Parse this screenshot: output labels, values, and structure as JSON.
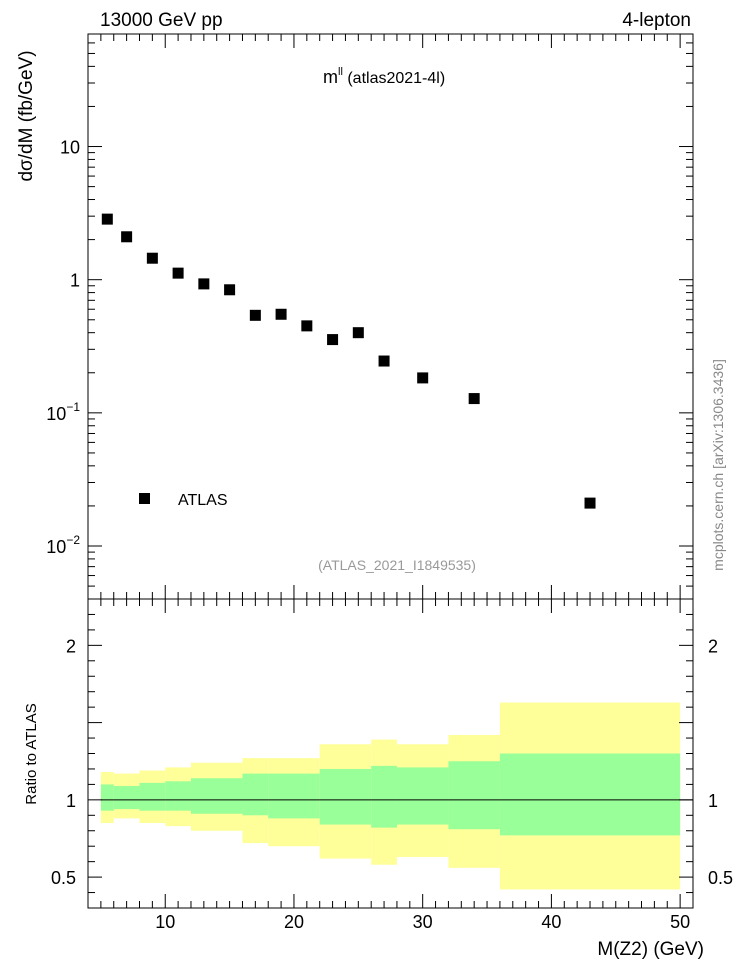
{
  "header": {
    "left": "13000 GeV pp",
    "right": "4-lepton"
  },
  "side_label": "mcplots.cern.ch [arXiv:1306.3436]",
  "chart_data": [
    {
      "type": "scatter",
      "title": "m",
      "title_sup": "ll",
      "title_suffix": " (atlas2021-4l)",
      "analysis_id": "(ATLAS_2021_I1849535)",
      "ylabel": "dσ/dM (fb/GeV)",
      "xlabel": "",
      "yscale": "log",
      "ylim": [
        0.004,
        70
      ],
      "xlim": [
        4,
        51
      ],
      "y_ticks": [
        {
          "value": 10,
          "base": "10",
          "exp": ""
        },
        {
          "value": 1,
          "base": "1",
          "exp": ""
        },
        {
          "value": 0.1,
          "base": "10",
          "exp": "−1"
        },
        {
          "value": 0.01,
          "base": "10",
          "exp": "−2"
        }
      ],
      "legend": [
        {
          "name": "ATLAS",
          "marker": "square",
          "position": "lower-left"
        }
      ],
      "series": [
        {
          "name": "ATLAS",
          "color": "#000000",
          "points": [
            {
              "x": 5.5,
              "y": 2.85
            },
            {
              "x": 7,
              "y": 2.1
            },
            {
              "x": 9,
              "y": 1.45
            },
            {
              "x": 11,
              "y": 1.12
            },
            {
              "x": 13,
              "y": 0.93
            },
            {
              "x": 15,
              "y": 0.84
            },
            {
              "x": 17,
              "y": 0.54
            },
            {
              "x": 19,
              "y": 0.55
            },
            {
              "x": 21,
              "y": 0.45
            },
            {
              "x": 23,
              "y": 0.355
            },
            {
              "x": 25,
              "y": 0.4
            },
            {
              "x": 27,
              "y": 0.245
            },
            {
              "x": 30,
              "y": 0.183
            },
            {
              "x": 34,
              "y": 0.128
            },
            {
              "x": 43,
              "y": 0.021
            }
          ]
        }
      ]
    },
    {
      "type": "area",
      "title": "",
      "ylabel": "Ratio to ATLAS",
      "xlabel": "M(Z2) (GeV)",
      "ylim": [
        0.3,
        2.3
      ],
      "xlim": [
        4,
        51
      ],
      "x_ticks": [
        10,
        20,
        30,
        40,
        50
      ],
      "y_ticks": [
        0.5,
        1,
        2
      ],
      "y_tick_labels": [
        "0.5",
        "1",
        "2"
      ],
      "colors": {
        "inner": "#99ff99",
        "outer": "#ffff99"
      },
      "reference_line": 1,
      "bands": [
        {
          "x_low": 5,
          "x_high": 6,
          "inner": [
            0.93,
            1.1
          ],
          "outer": [
            0.85,
            1.18
          ]
        },
        {
          "x_low": 6,
          "x_high": 8,
          "inner": [
            0.94,
            1.09
          ],
          "outer": [
            0.88,
            1.17
          ]
        },
        {
          "x_low": 8,
          "x_high": 10,
          "inner": [
            0.93,
            1.11
          ],
          "outer": [
            0.85,
            1.19
          ]
        },
        {
          "x_low": 10,
          "x_high": 12,
          "inner": [
            0.93,
            1.12
          ],
          "outer": [
            0.83,
            1.21
          ]
        },
        {
          "x_low": 12,
          "x_high": 16,
          "inner": [
            0.91,
            1.14
          ],
          "outer": [
            0.8,
            1.24
          ]
        },
        {
          "x_low": 16,
          "x_high": 18,
          "inner": [
            0.9,
            1.17
          ],
          "outer": [
            0.72,
            1.27
          ]
        },
        {
          "x_low": 18,
          "x_high": 22,
          "inner": [
            0.88,
            1.17
          ],
          "outer": [
            0.7,
            1.27
          ]
        },
        {
          "x_low": 22,
          "x_high": 26,
          "inner": [
            0.84,
            1.2
          ],
          "outer": [
            0.62,
            1.36
          ]
        },
        {
          "x_low": 26,
          "x_high": 28,
          "inner": [
            0.82,
            1.22
          ],
          "outer": [
            0.58,
            1.39
          ]
        },
        {
          "x_low": 28,
          "x_high": 32,
          "inner": [
            0.84,
            1.21
          ],
          "outer": [
            0.63,
            1.36
          ]
        },
        {
          "x_low": 32,
          "x_high": 36,
          "inner": [
            0.81,
            1.25
          ],
          "outer": [
            0.56,
            1.42
          ]
        },
        {
          "x_low": 36,
          "x_high": 50,
          "inner": [
            0.77,
            1.3
          ],
          "outer": [
            0.42,
            1.63
          ]
        }
      ]
    }
  ]
}
